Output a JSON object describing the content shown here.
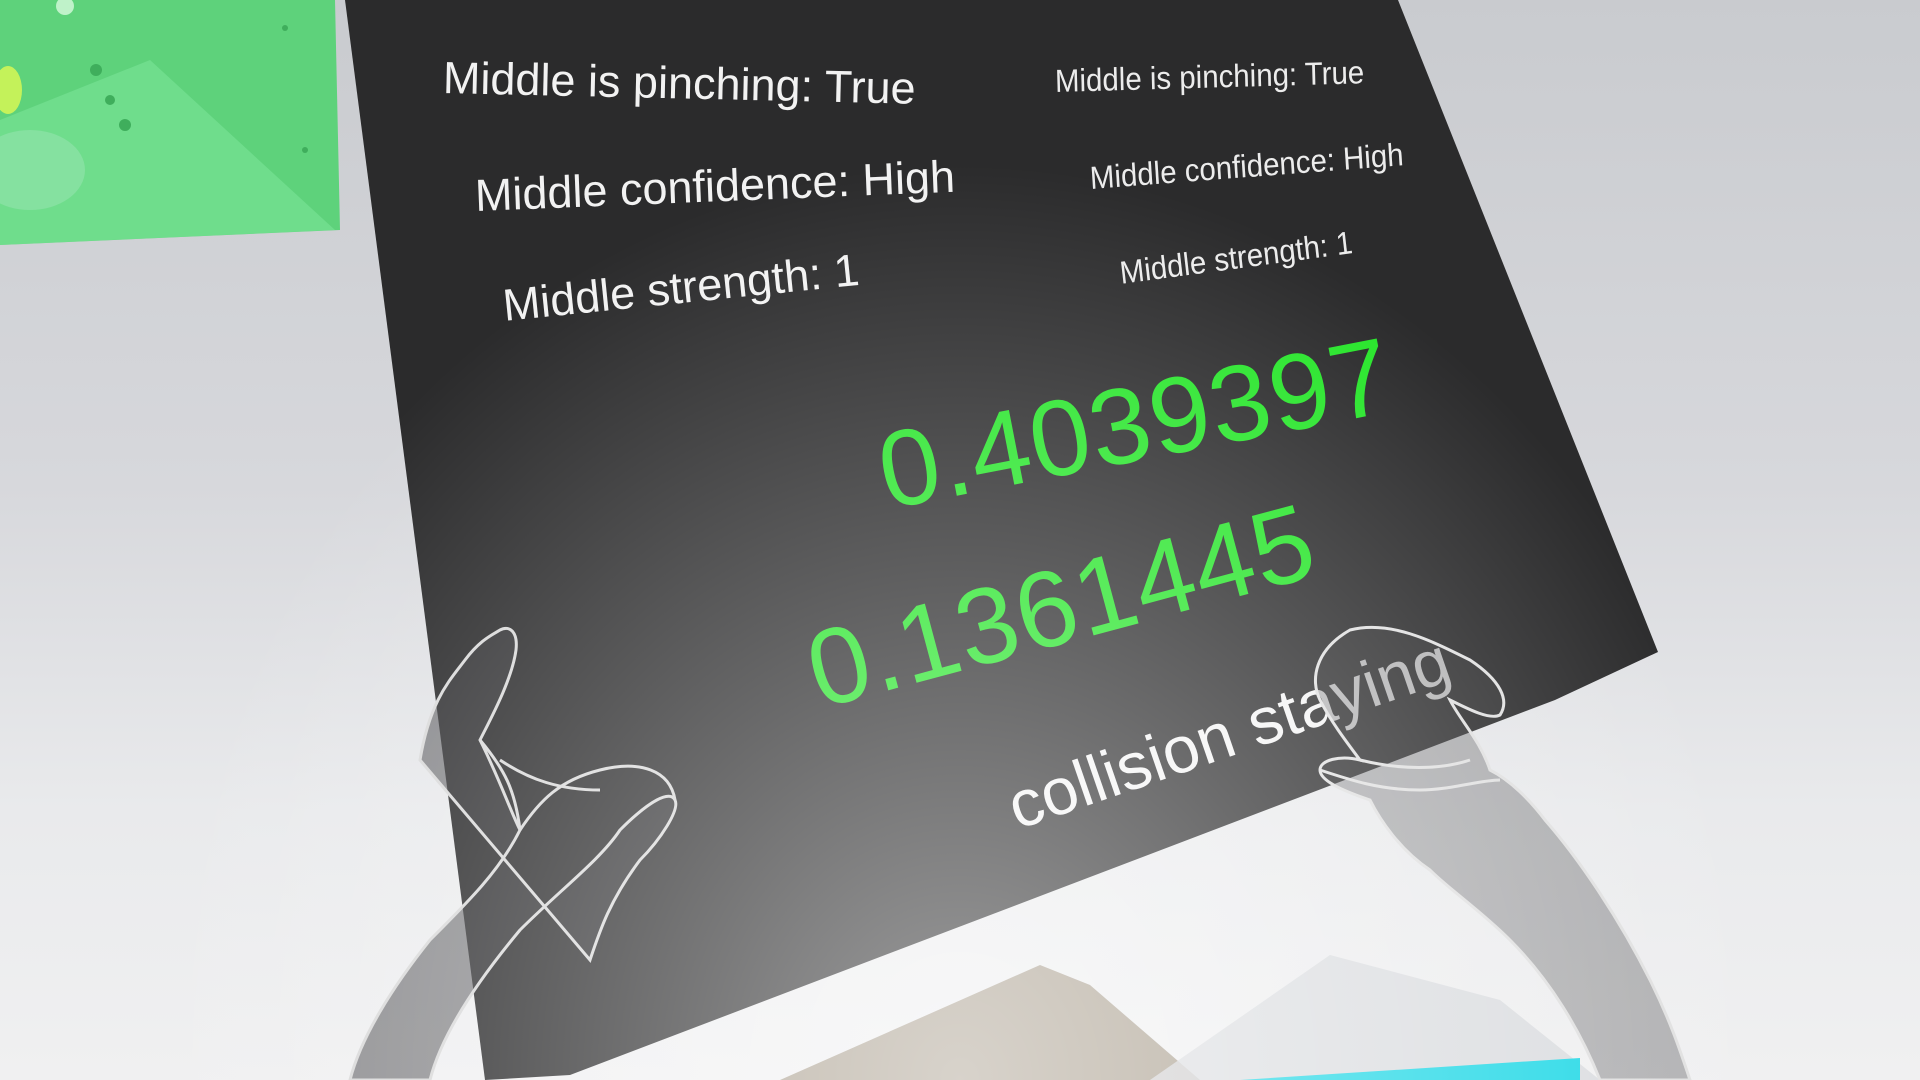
{
  "panel": {
    "left_column": {
      "pinching": "Middle is pinching: True",
      "confidence": "Middle confidence: High",
      "strength": "Middle strength: 1"
    },
    "right_column": {
      "pinching": "Middle is pinching: True",
      "confidence": "Middle confidence: High",
      "strength": "Middle strength: 1"
    },
    "value_1": "0.4039397",
    "value_2": "0.1361445",
    "collision_status": "collision staying"
  },
  "colors": {
    "panel": "#2b2b2c",
    "value_text": "#27e52a",
    "label_text": "#f2f2f2",
    "green_board": "#5fd47a",
    "cyan_strip": "#22d8e6"
  },
  "icons": {
    "left_hand": "left-hand-icon",
    "right_hand": "right-hand-icon"
  }
}
